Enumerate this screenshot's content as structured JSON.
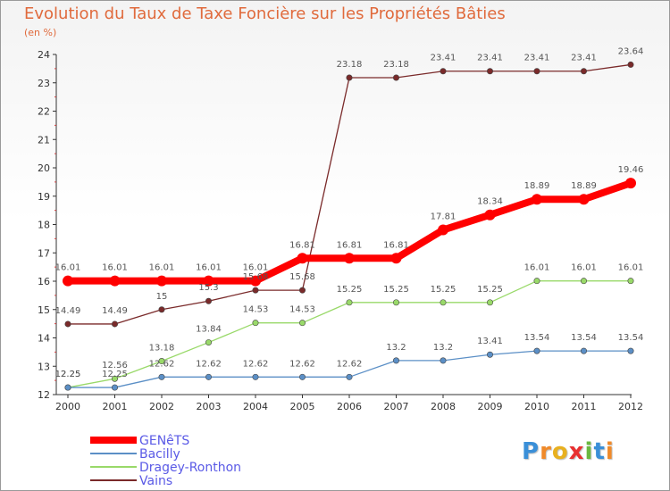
{
  "title": "Evolution du Taux de Taxe Foncière sur les Propriétés Bâties",
  "unit_label": "(en %)",
  "logo": {
    "letters": [
      "P",
      "r",
      "o",
      "x",
      "i",
      "t",
      "i"
    ],
    "colors": [
      "#3a8fd8",
      "#f08a2a",
      "#e8b020",
      "#e83030",
      "#6ab840",
      "#3a8fd8",
      "#f08a2a"
    ]
  },
  "chart_data": {
    "type": "line",
    "x": [
      "2000",
      "2001",
      "2002",
      "2003",
      "2004",
      "2005",
      "2006",
      "2007",
      "2008",
      "2009",
      "2010",
      "2011",
      "2012"
    ],
    "ylim": [
      12,
      24
    ],
    "yticks": [
      "12",
      "13",
      "14",
      "15",
      "16",
      "17",
      "18",
      "19",
      "20",
      "21",
      "22",
      "23",
      "24"
    ],
    "grid": false,
    "legend_position": "bottom-left",
    "series": [
      {
        "name": "GENêTS",
        "color": "#ff0000",
        "values": [
          16.01,
          16.01,
          16.01,
          16.01,
          16.01,
          16.81,
          16.81,
          16.81,
          17.81,
          18.34,
          18.89,
          18.89,
          19.46
        ],
        "labels": [
          "16.01",
          "16.01",
          "16.01",
          "16.01",
          "16.01",
          "16.81",
          "16.81",
          "16.81",
          "17.81",
          "18.34",
          "18.89",
          "18.89",
          "19.46"
        ]
      },
      {
        "name": "Bacilly",
        "color": "#5b8fc6",
        "values": [
          12.25,
          12.25,
          12.62,
          12.62,
          12.62,
          12.62,
          12.62,
          13.2,
          13.2,
          13.41,
          13.54,
          13.54,
          13.54
        ],
        "labels": [
          "12.25",
          "12.25",
          "12.62",
          "12.62",
          "12.62",
          "12.62",
          "12.62",
          "13.2",
          "13.2",
          "13.41",
          "13.54",
          "13.54",
          "13.54"
        ]
      },
      {
        "name": "Dragey-Ronthon",
        "color": "#99d969",
        "values": [
          12.25,
          12.56,
          13.18,
          13.84,
          14.53,
          14.53,
          15.25,
          15.25,
          15.25,
          15.25,
          16.01,
          16.01,
          16.01
        ],
        "labels": [
          "12.25",
          "12.56",
          "13.18",
          "13.84",
          "14.53",
          "14.53",
          "15.25",
          "15.25",
          "15.25",
          "15.25",
          "16.01",
          "16.01",
          "16.01"
        ]
      },
      {
        "name": "Vains",
        "color": "#7a2a2a",
        "values": [
          14.49,
          14.49,
          15.0,
          15.3,
          15.68,
          15.68,
          23.18,
          23.18,
          23.41,
          23.41,
          23.41,
          23.41,
          23.64
        ],
        "labels": [
          "14.49",
          "14.49",
          "15",
          "15.3",
          "15.68",
          "15.68",
          "23.18",
          "23.18",
          "23.41",
          "23.41",
          "23.41",
          "23.41",
          "23.64"
        ]
      }
    ]
  }
}
